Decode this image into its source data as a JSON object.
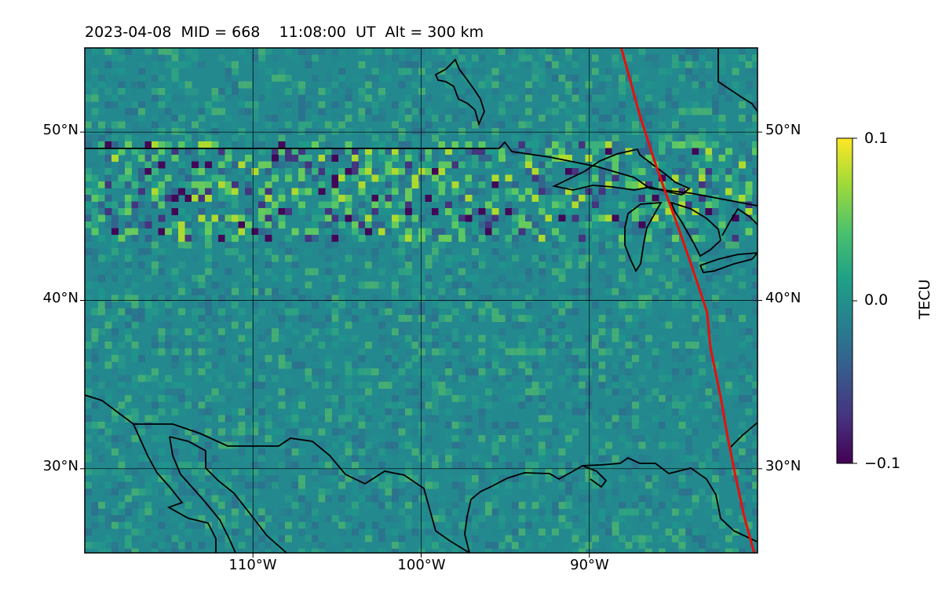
{
  "title": "2023-04-08  MID = 668    11:08:00  UT  Alt = 300 km",
  "map": {
    "lon_range": [
      -120,
      -80
    ],
    "lat_range": [
      25,
      55
    ],
    "lat_ticks": [
      {
        "value": 50,
        "label": "50°N"
      },
      {
        "value": 40,
        "label": "40°N"
      },
      {
        "value": 30,
        "label": "30°N"
      }
    ],
    "lon_ticks": [
      {
        "value": -110,
        "label": "110°W"
      },
      {
        "value": -100,
        "label": "100°W"
      },
      {
        "value": -90,
        "label": "90°W"
      }
    ],
    "gridlines": true,
    "background_color": "#23898e",
    "track_color": "#e8100b",
    "coast_color": "#000000",
    "eclipse_track": [
      [
        -88.1,
        55
      ],
      [
        -87.0,
        51
      ],
      [
        -86.2,
        48.5
      ],
      [
        -85.5,
        46.5
      ],
      [
        -84.7,
        44.3
      ],
      [
        -83.8,
        41.7
      ],
      [
        -83.0,
        39.3
      ],
      [
        -82.8,
        37.2
      ],
      [
        -82.2,
        34.3
      ],
      [
        -81.8,
        32.0
      ],
      [
        -81.3,
        29.5
      ],
      [
        -80.8,
        27.2
      ],
      [
        -80.2,
        25
      ]
    ]
  },
  "colorbar": {
    "label": "TECU",
    "ticks": [
      {
        "value": 0.1,
        "label": "0.1"
      },
      {
        "value": 0.0,
        "label": "0.0"
      },
      {
        "value": -0.1,
        "label": "−0.1"
      }
    ],
    "colors": [
      "#fde725",
      "#a0da39",
      "#4ac16d",
      "#1fa187",
      "#277f8e",
      "#365c8d",
      "#46327e",
      "#440154"
    ]
  }
}
